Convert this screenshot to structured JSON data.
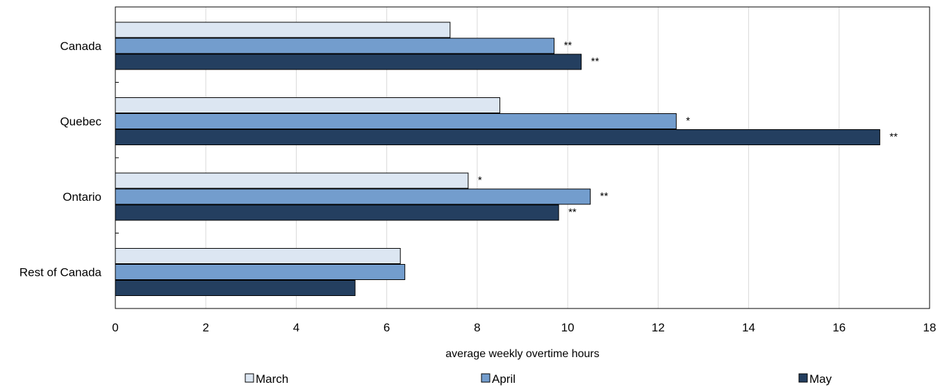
{
  "chart_data": {
    "type": "bar",
    "orientation": "horizontal",
    "title": "",
    "categories": [
      "Canada",
      "Quebec",
      "Ontario",
      "Rest of Canada"
    ],
    "series": [
      {
        "name": "March",
        "color": "#dce6f2",
        "values": [
          7.4,
          8.5,
          7.8,
          6.3
        ],
        "significance": [
          "",
          "",
          "*",
          ""
        ]
      },
      {
        "name": "April",
        "color": "#739dcd",
        "values": [
          9.7,
          12.4,
          10.5,
          6.4
        ],
        "significance": [
          "**",
          "*",
          "**",
          ""
        ]
      },
      {
        "name": "May",
        "color": "#243f60",
        "values": [
          10.3,
          16.9,
          9.8,
          5.3
        ],
        "significance": [
          "**",
          "**",
          "**",
          ""
        ]
      }
    ],
    "xlabel": "average weekly overtime hours",
    "ylabel": "",
    "xlim": [
      0,
      18
    ],
    "xticks": [
      "0",
      "2",
      "4",
      "6",
      "8",
      "10",
      "12",
      "14",
      "16",
      "18"
    ],
    "grid": true,
    "legend_position": "bottom"
  }
}
